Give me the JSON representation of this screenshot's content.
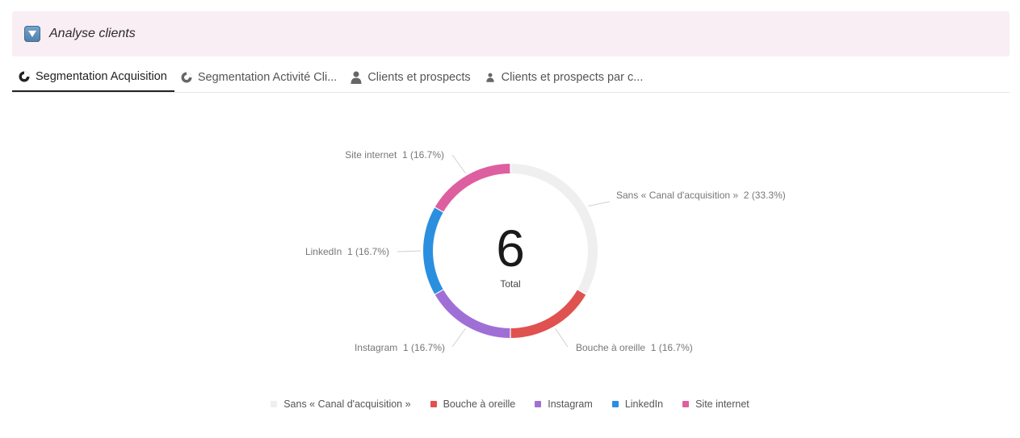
{
  "section": {
    "title": "Analyse clients",
    "toggle_icon": "triangle-down-icon"
  },
  "tabs": [
    {
      "label": "Segmentation Acquisition",
      "icon": "pie-chart-icon",
      "active": true
    },
    {
      "label": "Segmentation Activité Cli...",
      "icon": "pie-chart-icon",
      "active": false
    },
    {
      "label": "Clients et prospects",
      "icon": "person-icon",
      "active": false
    },
    {
      "label": "Clients et prospects par c...",
      "icon": "person-icon",
      "active": false
    }
  ],
  "chart_data": {
    "type": "pie",
    "donut": true,
    "total": 6,
    "center_label": "Total",
    "slices": [
      {
        "name": "Sans « Canal d'acquisition »",
        "value": 2,
        "percent": "33.3%",
        "color": "#efefef",
        "label": "Sans « Canal d'acquisition »  2 (33.3%)"
      },
      {
        "name": "Bouche à oreille",
        "value": 1,
        "percent": "16.7%",
        "color": "#e0524f",
        "label": "Bouche à oreille  1 (16.7%)"
      },
      {
        "name": "Instagram",
        "value": 1,
        "percent": "16.7%",
        "color": "#a06fd6",
        "label": "Instagram  1 (16.7%)"
      },
      {
        "name": "LinkedIn",
        "value": 1,
        "percent": "16.7%",
        "color": "#2b8fe0",
        "label": "LinkedIn  1 (16.7%)"
      },
      {
        "name": "Site internet",
        "value": 1,
        "percent": "16.7%",
        "color": "#dd5fa0",
        "label": "Site internet  1 (16.7%)"
      }
    ],
    "legend_position": "bottom"
  }
}
